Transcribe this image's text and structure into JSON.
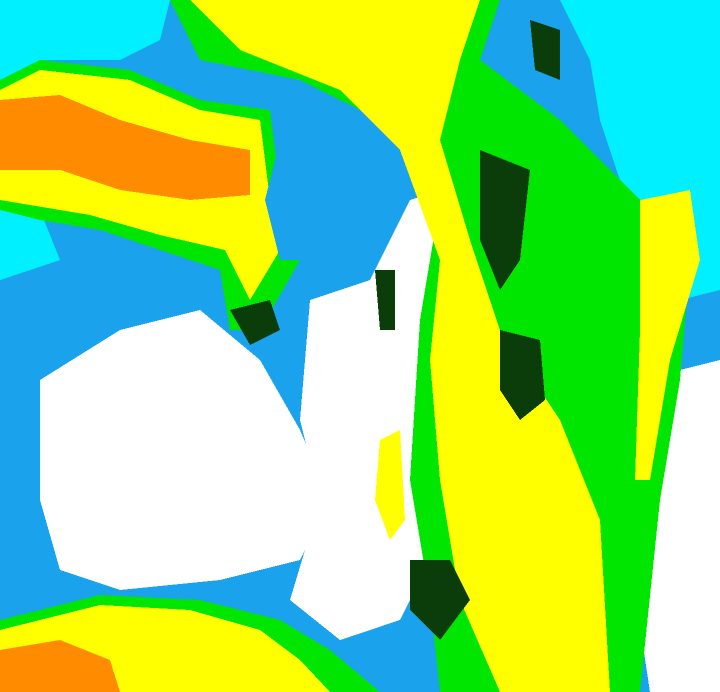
{
  "image": {
    "kind": "false-color classified raster",
    "palette": {
      "cyan": "#00f0ff",
      "light_blue": "#1aa3ec",
      "white": "#ffffff",
      "yellow": "#ffff00",
      "orange": "#ff8c00",
      "green": "#00e600",
      "dark_green": "#0b3d0b"
    }
  }
}
